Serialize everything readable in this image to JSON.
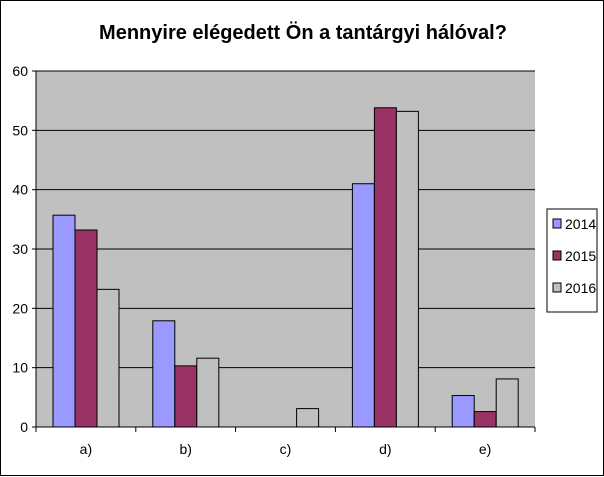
{
  "chart_data": {
    "type": "bar",
    "title": "Mennyire elégedett Ön a tantárgyi hálóval?",
    "categories": [
      "a)",
      "b)",
      "c)",
      "d)",
      "e)"
    ],
    "series": [
      {
        "name": "2014",
        "values": [
          35.7,
          17.9,
          0,
          41,
          5.3
        ],
        "color": "#9999ff"
      },
      {
        "name": "2015",
        "values": [
          33.2,
          10.3,
          0,
          53.8,
          2.6
        ],
        "color": "#993366"
      },
      {
        "name": "2016",
        "values": [
          23.2,
          11.6,
          3.1,
          53.2,
          8.1
        ],
        "color": "#c0c0c0"
      }
    ],
    "ylim": [
      0,
      60
    ],
    "yticks": [
      "0",
      "10",
      "20",
      "30",
      "40",
      "50",
      "60"
    ],
    "grid": true,
    "legend_position": "right",
    "plot_background": "#c0c0c0"
  }
}
